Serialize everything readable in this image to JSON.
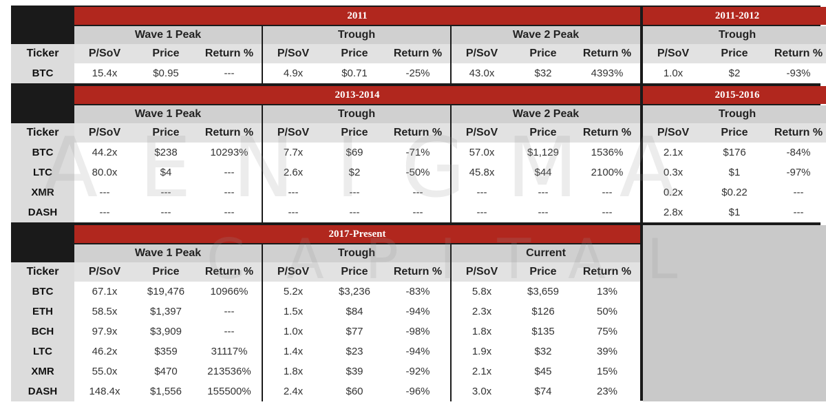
{
  "columns": [
    "P/SoV",
    "Price",
    "Return %"
  ],
  "ticker_header": "Ticker",
  "sections": [
    {
      "left": {
        "title": "2011",
        "groups": [
          "Wave 1 Peak",
          "Trough",
          "Wave 2 Peak"
        ],
        "rows": [
          {
            "ticker": "BTC",
            "cells": [
              "15.4x",
              "$0.95",
              "---",
              "4.9x",
              "$0.71",
              "-25%",
              "43.0x",
              "$32",
              "4393%"
            ]
          }
        ]
      },
      "right": {
        "title": "2011-2012",
        "group": "Trough",
        "rows": [
          [
            "1.0x",
            "$2",
            "-93%"
          ]
        ]
      }
    },
    {
      "left": {
        "title": "2013-2014",
        "groups": [
          "Wave 1 Peak",
          "Trough",
          "Wave 2 Peak"
        ],
        "rows": [
          {
            "ticker": "BTC",
            "cells": [
              "44.2x",
              "$238",
              "10293%",
              "7.7x",
              "$69",
              "-71%",
              "57.0x",
              "$1,129",
              "1536%"
            ]
          },
          {
            "ticker": "LTC",
            "cells": [
              "80.0x",
              "$4",
              "---",
              "2.6x",
              "$2",
              "-50%",
              "45.8x",
              "$44",
              "2100%"
            ]
          },
          {
            "ticker": "XMR",
            "cells": [
              "---",
              "---",
              "---",
              "---",
              "---",
              "---",
              "---",
              "---",
              "---"
            ]
          },
          {
            "ticker": "DASH",
            "cells": [
              "---",
              "---",
              "---",
              "---",
              "---",
              "---",
              "---",
              "---",
              "---"
            ]
          }
        ]
      },
      "right": {
        "title": "2015-2016",
        "group": "Trough",
        "rows": [
          [
            "2.1x",
            "$176",
            "-84%"
          ],
          [
            "0.3x",
            "$1",
            "-97%"
          ],
          [
            "0.2x",
            "$0.22",
            "---"
          ],
          [
            "2.8x",
            "$1",
            "---"
          ]
        ]
      }
    },
    {
      "left": {
        "title": "2017-Present",
        "groups": [
          "Wave 1 Peak",
          "Trough",
          "Current"
        ],
        "rows": [
          {
            "ticker": "BTC",
            "cells": [
              "67.1x",
              "$19,476",
              "10966%",
              "5.2x",
              "$3,236",
              "-83%",
              "5.8x",
              "$3,659",
              "13%"
            ]
          },
          {
            "ticker": "ETH",
            "cells": [
              "58.5x",
              "$1,397",
              "---",
              "1.5x",
              "$84",
              "-94%",
              "2.3x",
              "$126",
              "50%"
            ]
          },
          {
            "ticker": "BCH",
            "cells": [
              "97.9x",
              "$3,909",
              "---",
              "1.0x",
              "$77",
              "-98%",
              "1.8x",
              "$135",
              "75%"
            ]
          },
          {
            "ticker": "LTC",
            "cells": [
              "46.2x",
              "$359",
              "31117%",
              "1.4x",
              "$23",
              "-94%",
              "1.9x",
              "$32",
              "39%"
            ]
          },
          {
            "ticker": "XMR",
            "cells": [
              "55.0x",
              "$470",
              "213536%",
              "1.8x",
              "$39",
              "-92%",
              "2.1x",
              "$45",
              "15%"
            ]
          },
          {
            "ticker": "DASH",
            "cells": [
              "148.4x",
              "$1,556",
              "155500%",
              "2.4x",
              "$60",
              "-96%",
              "3.0x",
              "$74",
              "23%"
            ]
          }
        ]
      },
      "right": null
    }
  ],
  "watermark": {
    "line1": "AENIGMA",
    "line2": "CAPITAL"
  }
}
